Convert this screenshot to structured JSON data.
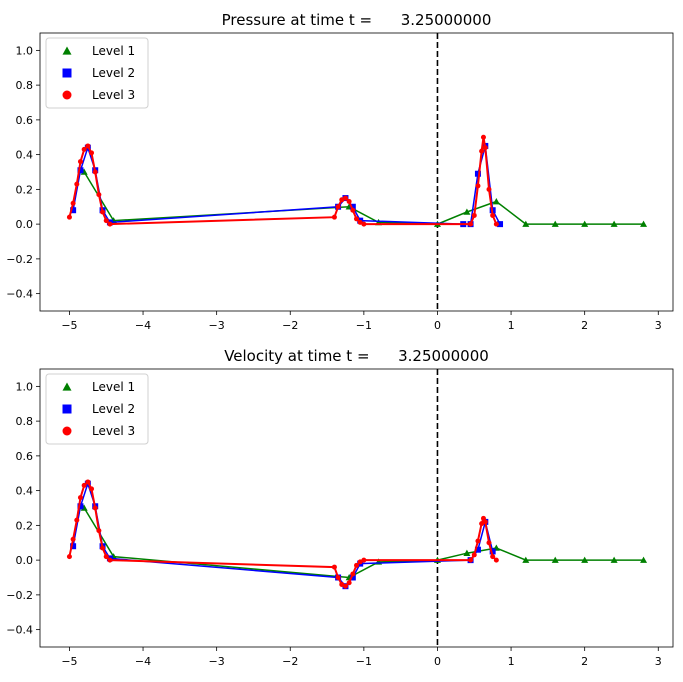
{
  "chart_data": [
    {
      "type": "line",
      "title": "Pressure at time t =      3.25000000",
      "xlim": [
        -5.4,
        3.2
      ],
      "ylim": [
        -0.5,
        1.1
      ],
      "xticks": [
        "-5",
        "-4",
        "-3",
        "-2",
        "-1",
        "0",
        "1",
        "2",
        "3"
      ],
      "yticks": [
        "-0.4",
        "-0.2",
        "0.0",
        "0.2",
        "0.4",
        "0.6",
        "0.8",
        "1.0"
      ],
      "vline_x": 0,
      "legend": {
        "placement": "top-left",
        "entries": [
          "Level 1",
          "Level 2",
          "Level 3"
        ]
      },
      "series": [
        {
          "name": "Level 1",
          "color": "#008000",
          "marker": "triangle",
          "x": [
            -4.8,
            -4.4,
            -1.2,
            -0.8,
            0.0,
            0.4,
            0.8,
            1.2,
            1.6,
            2.0,
            2.4,
            2.8
          ],
          "y": [
            0.3,
            0.02,
            0.1,
            0.01,
            0.0,
            0.07,
            0.13,
            0.0,
            0.0,
            0.0,
            0.0,
            0.0
          ]
        },
        {
          "name": "Level 2",
          "color": "#0000ff",
          "marker": "square",
          "x": [
            -4.95,
            -4.85,
            -4.75,
            -4.65,
            -4.55,
            -4.45,
            -1.35,
            -1.25,
            -1.15,
            -1.05,
            0.35,
            0.45,
            0.55,
            0.65,
            0.75,
            0.85
          ],
          "y": [
            0.08,
            0.31,
            0.44,
            0.31,
            0.08,
            0.01,
            0.1,
            0.15,
            0.1,
            0.02,
            0.0,
            0.0,
            0.29,
            0.45,
            0.08,
            0.0
          ]
        },
        {
          "name": "Level 3",
          "color": "#ff0000",
          "marker": "circle",
          "x": [
            -5.0,
            -4.95,
            -4.9,
            -4.85,
            -4.8,
            -4.75,
            -4.7,
            -4.65,
            -4.6,
            -4.55,
            -4.5,
            -4.45,
            -1.4,
            -1.35,
            -1.3,
            -1.25,
            -1.2,
            -1.15,
            -1.1,
            -1.05,
            -1.0,
            0.45,
            0.5,
            0.55,
            0.6,
            0.625,
            0.65,
            0.7,
            0.75,
            0.8
          ],
          "y": [
            0.04,
            0.12,
            0.23,
            0.36,
            0.43,
            0.45,
            0.41,
            0.3,
            0.17,
            0.07,
            0.02,
            0.0,
            0.04,
            0.1,
            0.14,
            0.15,
            0.13,
            0.08,
            0.03,
            0.01,
            0.0,
            0.0,
            0.05,
            0.22,
            0.42,
            0.5,
            0.44,
            0.2,
            0.05,
            0.0
          ]
        }
      ]
    },
    {
      "type": "line",
      "title": "Velocity at time t =      3.25000000",
      "xlim": [
        -5.4,
        3.2
      ],
      "ylim": [
        -0.5,
        1.1
      ],
      "xticks": [
        "-5",
        "-4",
        "-3",
        "-2",
        "-1",
        "0",
        "1",
        "2",
        "3"
      ],
      "yticks": [
        "-0.4",
        "-0.2",
        "0.0",
        "0.2",
        "0.4",
        "0.6",
        "0.8",
        "1.0"
      ],
      "vline_x": 0,
      "legend": {
        "placement": "top-left",
        "entries": [
          "Level 1",
          "Level 2",
          "Level 3"
        ]
      },
      "series": [
        {
          "name": "Level 1",
          "color": "#008000",
          "marker": "triangle",
          "x": [
            -4.8,
            -4.4,
            -1.2,
            -0.8,
            0.0,
            0.4,
            0.8,
            1.2,
            1.6,
            2.0,
            2.4,
            2.8
          ],
          "y": [
            0.3,
            0.02,
            -0.1,
            -0.01,
            0.0,
            0.04,
            0.07,
            0.0,
            0.0,
            0.0,
            0.0,
            0.0
          ]
        },
        {
          "name": "Level 2",
          "color": "#0000ff",
          "marker": "square",
          "x": [
            -4.95,
            -4.85,
            -4.75,
            -4.65,
            -4.55,
            -4.45,
            -1.35,
            -1.25,
            -1.15,
            -1.05,
            0.45,
            0.55,
            0.65,
            0.75
          ],
          "y": [
            0.08,
            0.31,
            0.44,
            0.31,
            0.08,
            0.01,
            -0.1,
            -0.15,
            -0.1,
            -0.02,
            0.0,
            0.06,
            0.22,
            0.05
          ]
        },
        {
          "name": "Level 3",
          "color": "#ff0000",
          "marker": "circle",
          "x": [
            -5.0,
            -4.95,
            -4.9,
            -4.85,
            -4.8,
            -4.75,
            -4.7,
            -4.65,
            -4.6,
            -4.55,
            -4.5,
            -4.45,
            -1.4,
            -1.35,
            -1.3,
            -1.25,
            -1.2,
            -1.15,
            -1.1,
            -1.05,
            -1.0,
            0.45,
            0.5,
            0.55,
            0.6,
            0.625,
            0.65,
            0.7,
            0.75,
            0.8
          ],
          "y": [
            0.02,
            0.12,
            0.23,
            0.36,
            0.43,
            0.45,
            0.41,
            0.3,
            0.17,
            0.07,
            0.02,
            0.0,
            -0.04,
            -0.1,
            -0.14,
            -0.15,
            -0.13,
            -0.08,
            -0.03,
            -0.01,
            0.0,
            0.0,
            0.03,
            0.11,
            0.21,
            0.24,
            0.22,
            0.1,
            0.02,
            0.0
          ]
        }
      ]
    }
  ]
}
